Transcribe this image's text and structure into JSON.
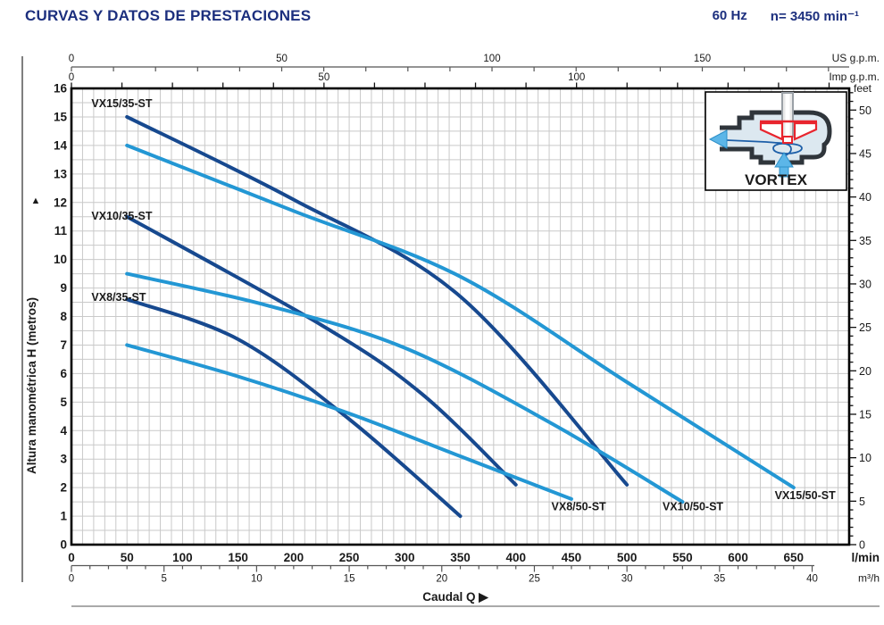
{
  "header": {
    "title": "CURVAS Y DATOS DE PRESTACIONES",
    "frequency": "60 Hz",
    "speed": "n= 3450 min⁻¹"
  },
  "chart_data": {
    "type": "line",
    "xlabel": "Caudal Q",
    "xlabel_arrow": "▶",
    "ylabel": "Altura manométrica H (metros)",
    "ylabel_arrow": "▲",
    "xlim_lmin": [
      0,
      700
    ],
    "ylim_m": [
      0,
      16
    ],
    "grid": true,
    "grid_step_lmin": 10,
    "grid_step_m": 0.5,
    "x_axes": [
      {
        "id": "us",
        "unit": "US g.p.m.",
        "to_lmin": 3.7854,
        "labeled_ticks": [
          0,
          50,
          100,
          150
        ],
        "minor_step": 10,
        "max": 185
      },
      {
        "id": "imp",
        "unit": "Imp g.p.m.",
        "to_lmin": 4.5461,
        "labeled_ticks": [
          0,
          50,
          100
        ],
        "minor_step": 10,
        "max": 150
      },
      {
        "id": "lmin",
        "unit": "l/min",
        "to_lmin": 1,
        "labeled_ticks": [
          0,
          50,
          100,
          150,
          200,
          250,
          300,
          350,
          400,
          450,
          500,
          550,
          600,
          650
        ],
        "minor_step": 10,
        "max": 700
      },
      {
        "id": "m3h",
        "unit": "m³/h",
        "to_lmin": 16.6667,
        "labeled_ticks": [
          0,
          5,
          10,
          15,
          20,
          25,
          30,
          35,
          40
        ],
        "minor_step": 1,
        "max": 40
      }
    ],
    "y_axes": [
      {
        "id": "metros",
        "unit": "",
        "to_m": 1,
        "labeled_ticks": [
          0,
          1,
          2,
          3,
          4,
          5,
          6,
          7,
          8,
          9,
          10,
          11,
          12,
          13,
          14,
          15,
          16
        ],
        "minor_step": 0.5
      },
      {
        "id": "feet",
        "unit": "feet",
        "to_m": 0.3048,
        "labeled_ticks": [
          0,
          5,
          10,
          15,
          20,
          25,
          30,
          35,
          40,
          45,
          50
        ],
        "minor_step": 1,
        "max": 52
      }
    ],
    "series": [
      {
        "name": "VX15/35-ST",
        "color": "#17498f",
        "points": [
          [
            50,
            15
          ],
          [
            200,
            12.1
          ],
          [
            350,
            8.7
          ],
          [
            500,
            2.1
          ]
        ],
        "label": {
          "q": 18,
          "h": 15.35
        }
      },
      {
        "name": "VX10/35-ST",
        "color": "#17498f",
        "points": [
          [
            50,
            11.5
          ],
          [
            225,
            7.7
          ],
          [
            315,
            5.3
          ],
          [
            400,
            2.1
          ]
        ],
        "label": {
          "q": 18,
          "h": 11.4
        }
      },
      {
        "name": "VX8/35-ST",
        "color": "#17498f",
        "points": [
          [
            50,
            8.6
          ],
          [
            150,
            7.2
          ],
          [
            250,
            4.4
          ],
          [
            350,
            1.0
          ]
        ],
        "label": {
          "q": 18,
          "h": 8.55
        }
      },
      {
        "name": "VX8/50-ST",
        "color": "#2397d4",
        "points": [
          [
            50,
            7.0
          ],
          [
            150,
            5.9
          ],
          [
            250,
            4.6
          ],
          [
            350,
            3.1
          ],
          [
            450,
            1.6
          ]
        ],
        "label": {
          "q": 432,
          "h": 1.2
        }
      },
      {
        "name": "VX10/50-ST",
        "color": "#2397d4",
        "points": [
          [
            50,
            9.5
          ],
          [
            175,
            8.4
          ],
          [
            300,
            6.9
          ],
          [
            430,
            4.3
          ],
          [
            550,
            1.5
          ]
        ],
        "label": {
          "q": 532,
          "h": 1.2
        }
      },
      {
        "name": "VX15/50-ST",
        "color": "#2397d4",
        "points": [
          [
            50,
            14
          ],
          [
            200,
            11.7
          ],
          [
            350,
            9.4
          ],
          [
            500,
            5.7
          ],
          [
            650,
            2.0
          ]
        ],
        "label": {
          "q": 633,
          "h": 1.6
        }
      }
    ]
  },
  "inset": {
    "label": "VORTEX"
  },
  "colors": {
    "header_text": "#1c2f7e",
    "curve_dark": "#17498f",
    "curve_light": "#2397d4",
    "grid": "#c9c9c9",
    "axis_line": "#555555",
    "border": "#000000",
    "arrow_blue": "#5cb6e8",
    "impeller_red": "#e8252e"
  }
}
